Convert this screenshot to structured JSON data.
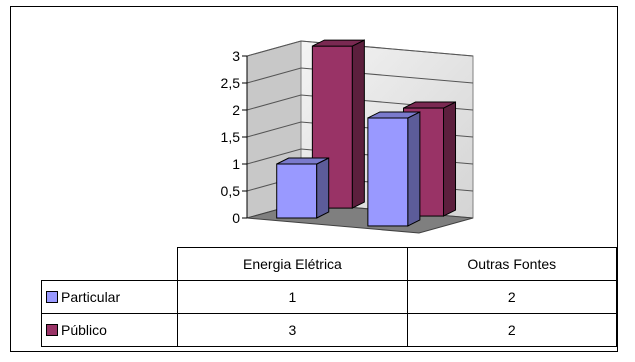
{
  "chart_data": {
    "type": "bar",
    "categories": [
      "Energia Elétrica",
      "Outras Fontes"
    ],
    "series": [
      {
        "name": "Particular",
        "values": [
          1,
          2
        ],
        "color": "#9999ff"
      },
      {
        "name": "Público",
        "values": [
          3,
          2
        ],
        "color": "#993366"
      }
    ],
    "ylim": [
      0,
      3
    ],
    "yticks": [
      "0",
      "0,5",
      "1",
      "1,5",
      "2",
      "2,5",
      "3"
    ],
    "grid": true,
    "style": "3d-column-with-data-table"
  }
}
